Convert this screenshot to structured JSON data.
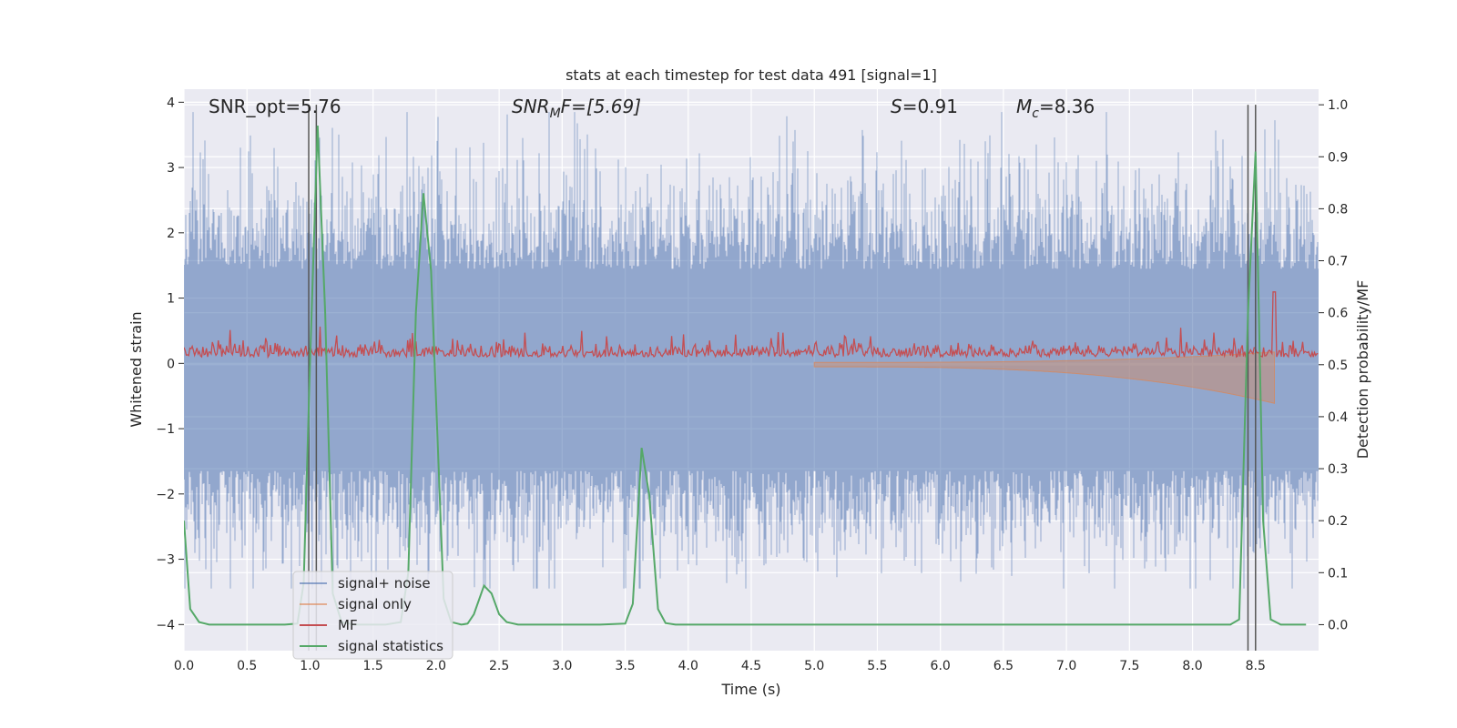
{
  "chart_data": {
    "type": "line",
    "title": "stats at each timestep for test data 491 [signal=1]",
    "xlabel": "Time (s)",
    "ylabel_left": "Whitened strain",
    "ylabel_right": "Detection probability/MF",
    "xlim": [
      0.0,
      9.0
    ],
    "ylim_left": [
      -4.4,
      4.2
    ],
    "ylim_right": [
      -0.05,
      1.03
    ],
    "xticks": [
      "0.0",
      "0.5",
      "1.0",
      "1.5",
      "2.0",
      "2.5",
      "3.0",
      "3.5",
      "4.0",
      "4.5",
      "5.0",
      "5.5",
      "6.0",
      "6.5",
      "7.0",
      "7.5",
      "8.0",
      "8.5"
    ],
    "yticks_left": [
      "4",
      "3",
      "2",
      "1",
      "0",
      "−1",
      "−2",
      "−3",
      "−4"
    ],
    "yticks_right": [
      "1.0",
      "0.9",
      "0.8",
      "0.7",
      "0.6",
      "0.5",
      "0.4",
      "0.3",
      "0.2",
      "0.1",
      "0.0"
    ],
    "grid": true,
    "legend_placement": "lower-left",
    "annotations": {
      "snr_opt": "SNR_opt=5.76",
      "snr_mf_main": "SNR",
      "snr_mf_sub": "M",
      "snr_mf_rest": "F=[5.69]",
      "s_main": "S",
      "s_rest": "=0.91",
      "mc_main": "M",
      "mc_sub": "c",
      "mc_rest": "=8.36"
    },
    "vertical_lines_x": [
      0.99,
      1.05,
      8.44,
      8.5
    ],
    "series": [
      {
        "name": "signal+ noise",
        "axis": "left",
        "color": "#4c72b0",
        "description": "dense whitened noise spanning roughly -3.4 to 3.8 across 0-9 s"
      },
      {
        "name": "signal only",
        "axis": "left",
        "color": "#dd8452",
        "x_range": [
          5.0,
          8.65
        ],
        "description": "chirp growing in amplitude toward ~8.65 s"
      },
      {
        "name": "MF",
        "axis": "right",
        "color": "#c44e52",
        "baseline": 0.52,
        "description": "noisy matched-filter output around 0.5-0.57 with a spike to ~0.64 near 8.65 s"
      },
      {
        "name": "signal statistics",
        "axis": "right",
        "color": "#55a868",
        "x": [
          0.0,
          0.05,
          0.12,
          0.2,
          0.3,
          0.5,
          0.8,
          0.9,
          0.95,
          1.0,
          1.06,
          1.12,
          1.18,
          1.25,
          1.35,
          1.6,
          1.72,
          1.78,
          1.84,
          1.9,
          1.96,
          2.0,
          2.06,
          2.12,
          2.2,
          2.25,
          2.3,
          2.38,
          2.44,
          2.5,
          2.56,
          2.65,
          2.8,
          3.0,
          3.3,
          3.5,
          3.56,
          3.63,
          3.69,
          3.76,
          3.82,
          3.9,
          4.5,
          6.0,
          8.3,
          8.37,
          8.44,
          8.5,
          8.56,
          8.62,
          8.7,
          8.9
        ],
        "values": [
          0.2,
          0.03,
          0.005,
          0.0,
          0.0,
          0.0,
          0.0,
          0.002,
          0.08,
          0.5,
          0.96,
          0.6,
          0.06,
          0.005,
          0.0,
          0.0,
          0.005,
          0.1,
          0.6,
          0.83,
          0.68,
          0.43,
          0.05,
          0.005,
          0.0,
          0.002,
          0.02,
          0.075,
          0.06,
          0.02,
          0.005,
          0.0,
          0.0,
          0.0,
          0.0,
          0.002,
          0.04,
          0.34,
          0.25,
          0.03,
          0.003,
          0.0,
          0.0,
          0.0,
          0.0,
          0.01,
          0.6,
          0.91,
          0.2,
          0.01,
          0.0,
          0.0
        ]
      }
    ]
  }
}
